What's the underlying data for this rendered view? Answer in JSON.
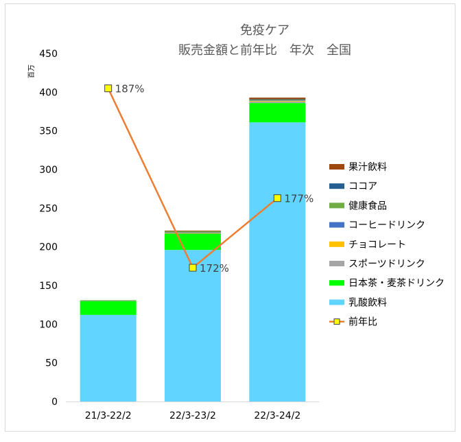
{
  "chart_data": {
    "type": "bar",
    "stacked": true,
    "title": "免疫ケア",
    "subtitle": "販売金額と前年比　年次　全国",
    "yunit": "百万",
    "ylim": [
      0,
      450
    ],
    "yticks": [
      0,
      50,
      100,
      150,
      200,
      250,
      300,
      350,
      400,
      450
    ],
    "categories": [
      "21/3-22/2",
      "22/3-23/2",
      "22/3-24/2"
    ],
    "series": [
      {
        "name": "乳酸飲料",
        "color": "#61D5FF",
        "values": [
          112,
          196,
          361
        ]
      },
      {
        "name": "日本茶・麦茶ドリンク",
        "color": "#00FF00",
        "values": [
          18,
          21,
          25
        ]
      },
      {
        "name": "スポーツドリンク",
        "color": "#A5A5A5",
        "values": [
          0.5,
          1,
          2
        ]
      },
      {
        "name": "チョコレート",
        "color": "#FFC000",
        "values": [
          0,
          0.5,
          1
        ]
      },
      {
        "name": "コーヒードリンク",
        "color": "#4472C4",
        "values": [
          0,
          0.5,
          0.5
        ]
      },
      {
        "name": "健康食品",
        "color": "#70AD47",
        "values": [
          0.5,
          1.5,
          1
        ]
      },
      {
        "name": "ココア",
        "color": "#255E91",
        "values": [
          0,
          0,
          0.5
        ]
      },
      {
        "name": "果汁飲料",
        "color": "#9E480E",
        "values": [
          0,
          0.5,
          2
        ]
      }
    ],
    "line": {
      "name": "前年比",
      "color": "#ED7D31",
      "marker_color": "#FFFF00",
      "values": [
        187,
        172,
        177
      ],
      "labels": [
        "187%",
        "172%",
        "177%"
      ],
      "y_positions": [
        405,
        173,
        263
      ]
    },
    "legend": "right",
    "grid": false
  }
}
